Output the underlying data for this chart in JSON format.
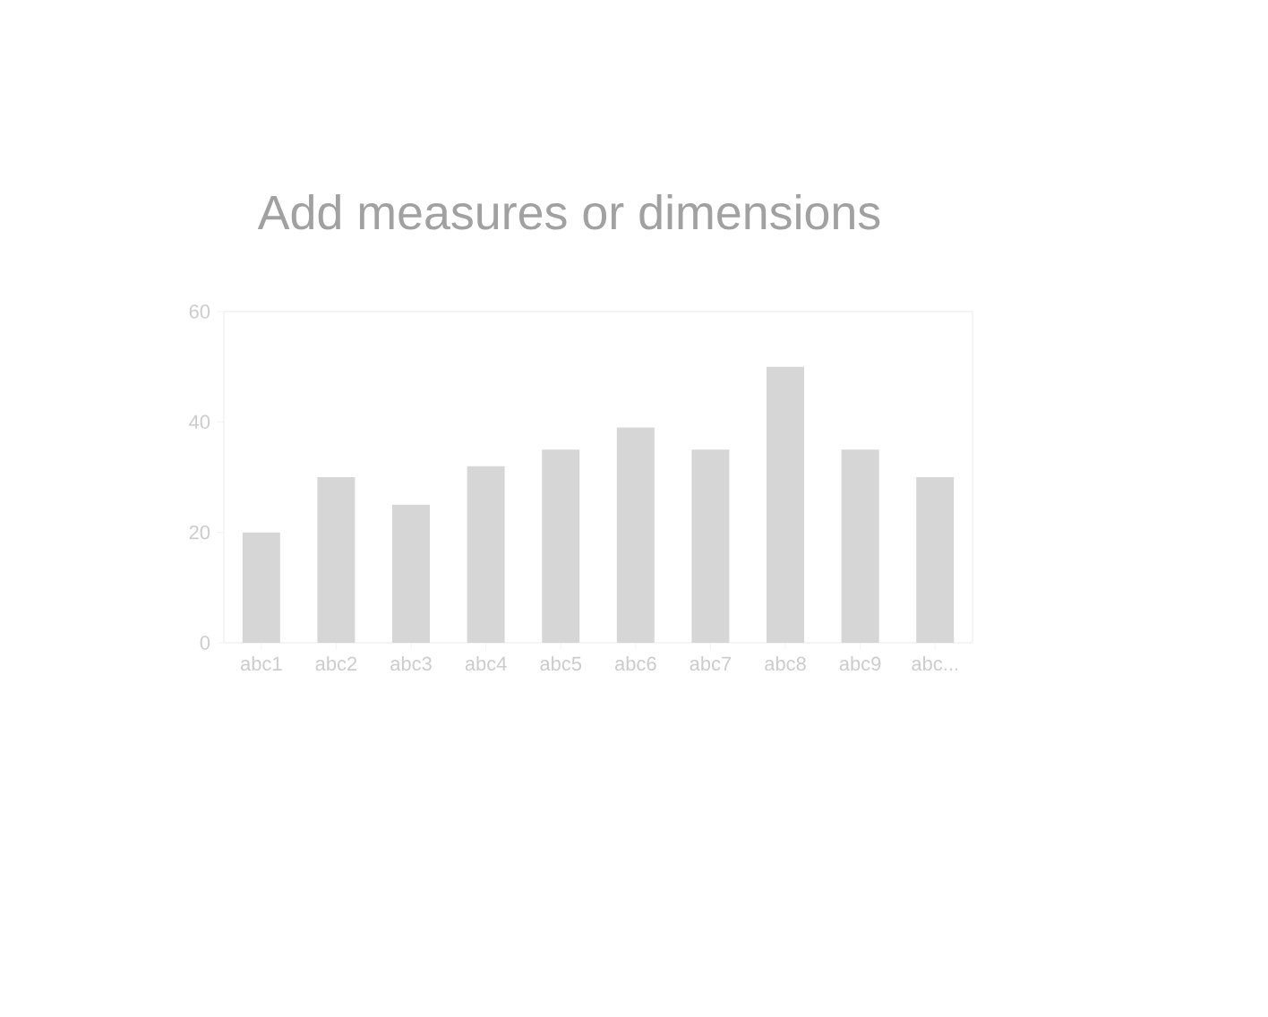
{
  "chart_data": {
    "type": "bar",
    "title": "Add measures or dimensions",
    "categories": [
      "abc1",
      "abc2",
      "abc3",
      "abc4",
      "abc5",
      "abc6",
      "abc7",
      "abc8",
      "abc9",
      "abc..."
    ],
    "values": [
      20,
      30,
      25,
      32,
      35,
      39,
      35,
      50,
      35,
      30
    ],
    "color": "#d6d6d6",
    "ylim": [
      0,
      60
    ],
    "yticks": [
      0,
      20,
      40,
      60
    ],
    "grid": false
  }
}
